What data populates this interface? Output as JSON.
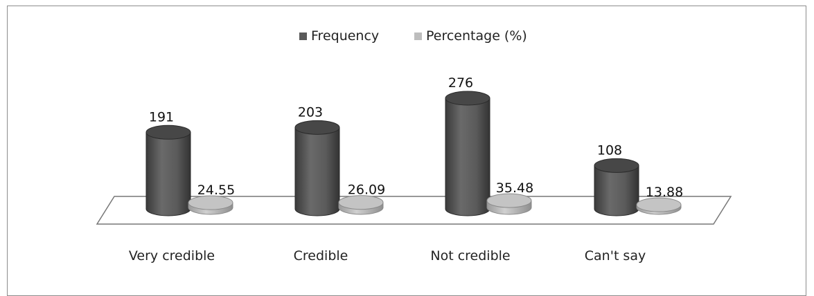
{
  "chart_data": {
    "type": "bar",
    "style": "3d-cylinder",
    "categories": [
      "Very credible",
      "Credible",
      "Not credible",
      "Can't say"
    ],
    "series": [
      {
        "name": "Frequency",
        "values": [
          191,
          203,
          276,
          108
        ],
        "color": "#5a5a5a"
      },
      {
        "name": "Percentage (%)",
        "values": [
          24.55,
          26.09,
          35.48,
          13.88
        ],
        "color": "#bdbdbd"
      }
    ],
    "value_labels": [
      [
        "191",
        "203",
        "276",
        "108"
      ],
      [
        "24.55",
        "26.09",
        "35.48",
        "13.88"
      ]
    ],
    "legend_position": "top-center",
    "grid": false,
    "ylim": [
      0,
      276
    ]
  }
}
